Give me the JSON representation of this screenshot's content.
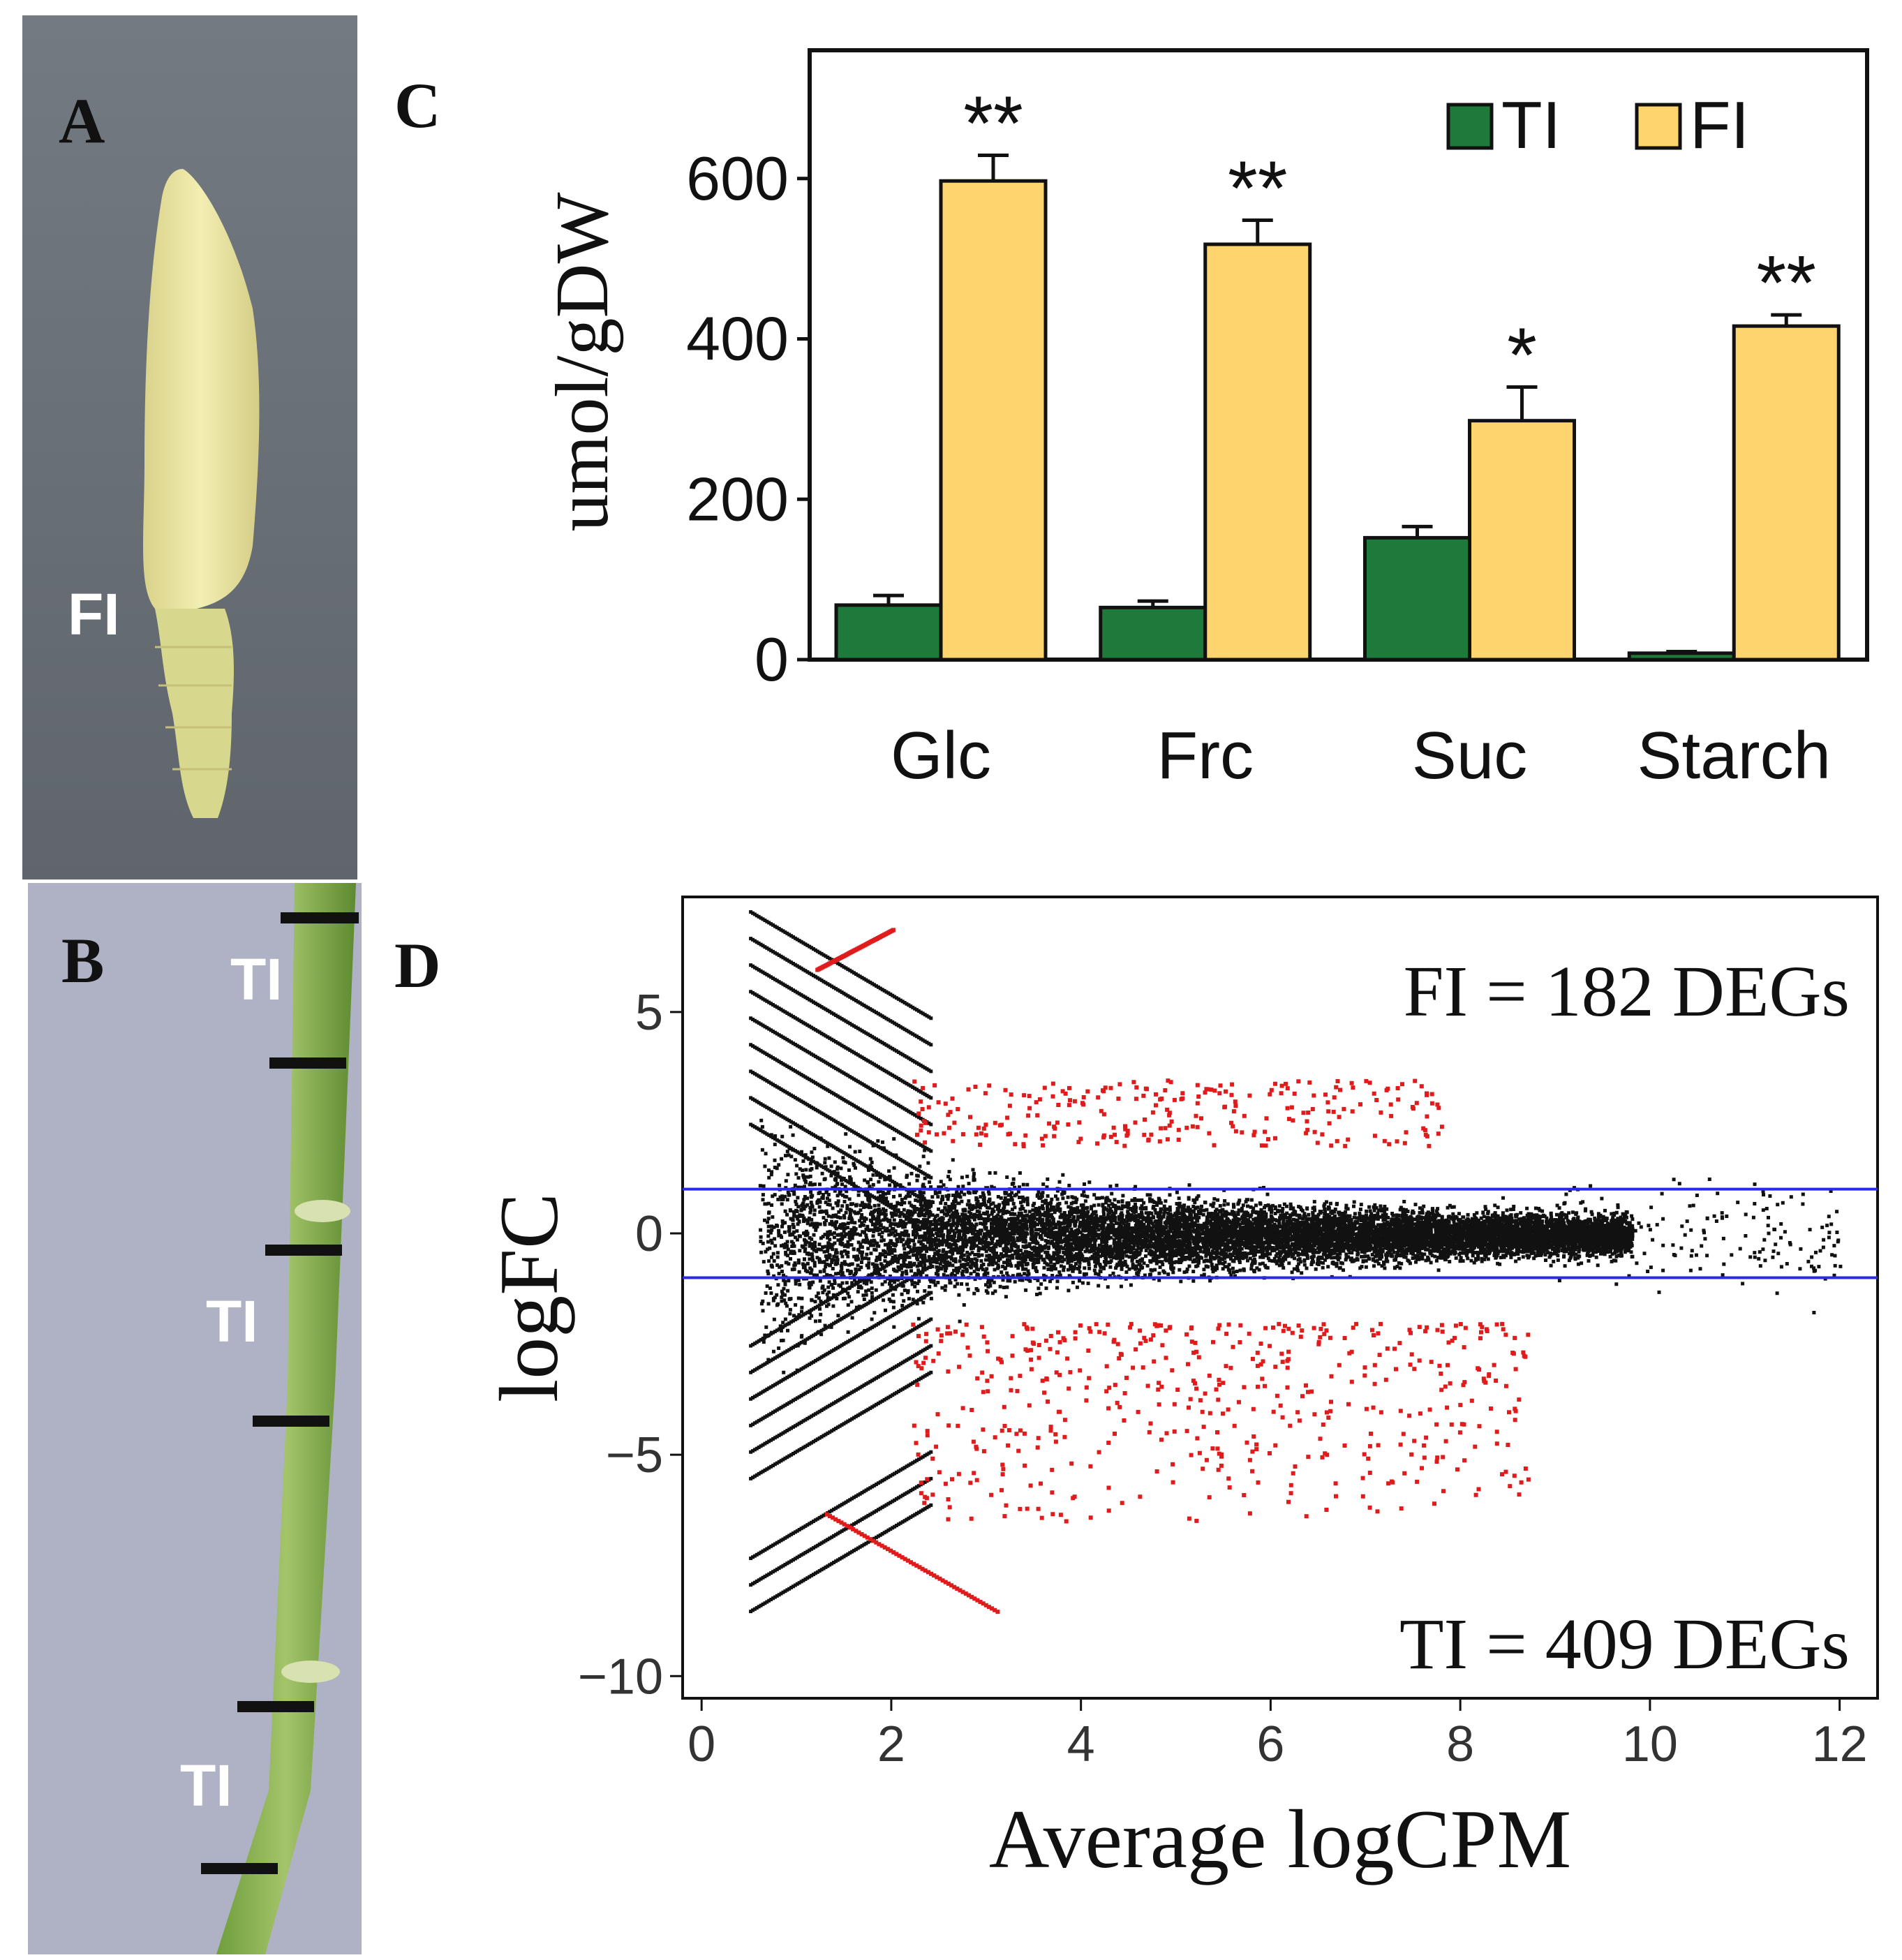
{
  "panels": {
    "a": {
      "label": "A",
      "photo_label": "FI"
    },
    "b": {
      "label": "B",
      "photo_labels": [
        "TI",
        "TI",
        "TI"
      ]
    },
    "c": {
      "label": "C"
    },
    "d": {
      "label": "D"
    }
  },
  "colors": {
    "TI": "#1e7a3a",
    "FI": "#fdd46e",
    "red_points": "#e01b1b",
    "threshold_lines": "#2b2bdf"
  },
  "chart_data": [
    {
      "id": "C",
      "type": "bar",
      "title": "",
      "xlabel": "",
      "ylabel": "umol/gDW",
      "ylim": [
        0,
        760
      ],
      "yticks": [
        0,
        200,
        400,
        600
      ],
      "categories": [
        "Glc",
        "Frc",
        "Suc",
        "Starch"
      ],
      "series": [
        {
          "name": "TI",
          "values": [
            68,
            65,
            152,
            8
          ],
          "errors": [
            12,
            8,
            14,
            2
          ]
        },
        {
          "name": "FI",
          "values": [
            597,
            518,
            298,
            416
          ],
          "errors": [
            32,
            30,
            42,
            14
          ]
        }
      ],
      "significance": [
        "**",
        "**",
        "*",
        "**"
      ],
      "legend": {
        "position": "top-right",
        "entries": [
          "TI",
          "FI"
        ]
      }
    },
    {
      "id": "D",
      "type": "scatter",
      "title": "",
      "xlabel": "Average logCPM",
      "ylabel": "logFC",
      "xlim": [
        -0.2,
        12.4
      ],
      "ylim": [
        -10.5,
        7.6
      ],
      "xticks": [
        0,
        2,
        4,
        6,
        8,
        10,
        12
      ],
      "yticks": [
        5,
        0,
        -5,
        -10
      ],
      "ytick_labels": [
        "5",
        "0",
        "−5",
        "−10"
      ],
      "hlines": [
        1,
        -1
      ],
      "annotations": [
        "FI = 182 DEGs",
        "TI = 409 DEGs"
      ],
      "description": "MA plot: black points are non-significant genes, red points are differentially expressed genes"
    }
  ]
}
